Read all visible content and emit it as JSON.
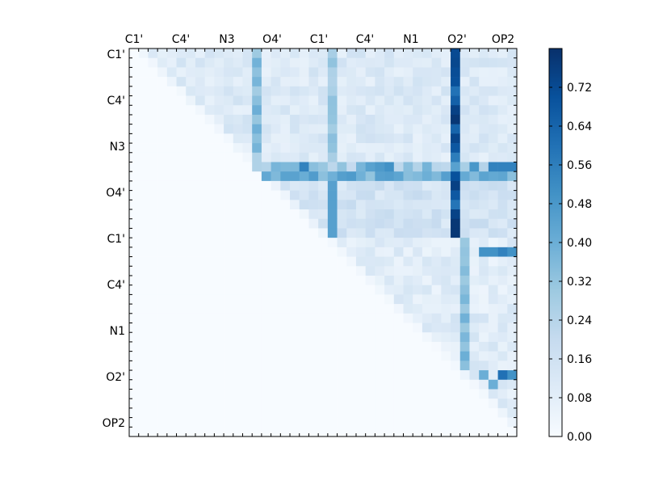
{
  "chart_data": {
    "type": "heatmap",
    "title": "",
    "xlabel": "",
    "ylabel": "",
    "x_tick_labels": [
      "C1'",
      "C4'",
      "N3",
      "O4'",
      "C1'",
      "C4'",
      "N1",
      "O2'",
      "OP2"
    ],
    "y_tick_labels": [
      "C1'",
      "C4'",
      "N3",
      "O4'",
      "C1'",
      "C4'",
      "N1",
      "O2'",
      "OP2"
    ],
    "colorbar": {
      "colormap": "Blues",
      "range": [
        0.0,
        0.8
      ],
      "tick_labels": [
        "0.00",
        "0.08",
        "0.16",
        "0.24",
        "0.32",
        "0.40",
        "0.48",
        "0.56",
        "0.64",
        "0.72"
      ],
      "tick_values": [
        0.0,
        0.08,
        0.16,
        0.24,
        0.32,
        0.4,
        0.48,
        0.56,
        0.64,
        0.72
      ]
    },
    "grid": false,
    "n": 41,
    "matrix_upper_triangle_rows": [
      "...sss..s..................................",
      "...........................................",
      "...........................................",
      "...........................................",
      "...........................................",
      "...........................................",
      "...........................................",
      "...........................................",
      "...........................................",
      "...........................................",
      "...........................................",
      "...........................................",
      "...........................................",
      "...........................................",
      "...........................................",
      "...........................................",
      "...........................................",
      "...........................................",
      "...........................................",
      "...........................................",
      "...........................................",
      "...........................................",
      "...........................................",
      "...........................................",
      "...........................................",
      "...........................................",
      "...........................................",
      "...........................................",
      "...........................................",
      "...........................................",
      "...........................................",
      "...........................................",
      "...........................................",
      "...........................................",
      "...........................................",
      "...........................................",
      "...........................................",
      "...........................................",
      "...........................................",
      "...........................................",
      "..........................................."
    ]
  }
}
